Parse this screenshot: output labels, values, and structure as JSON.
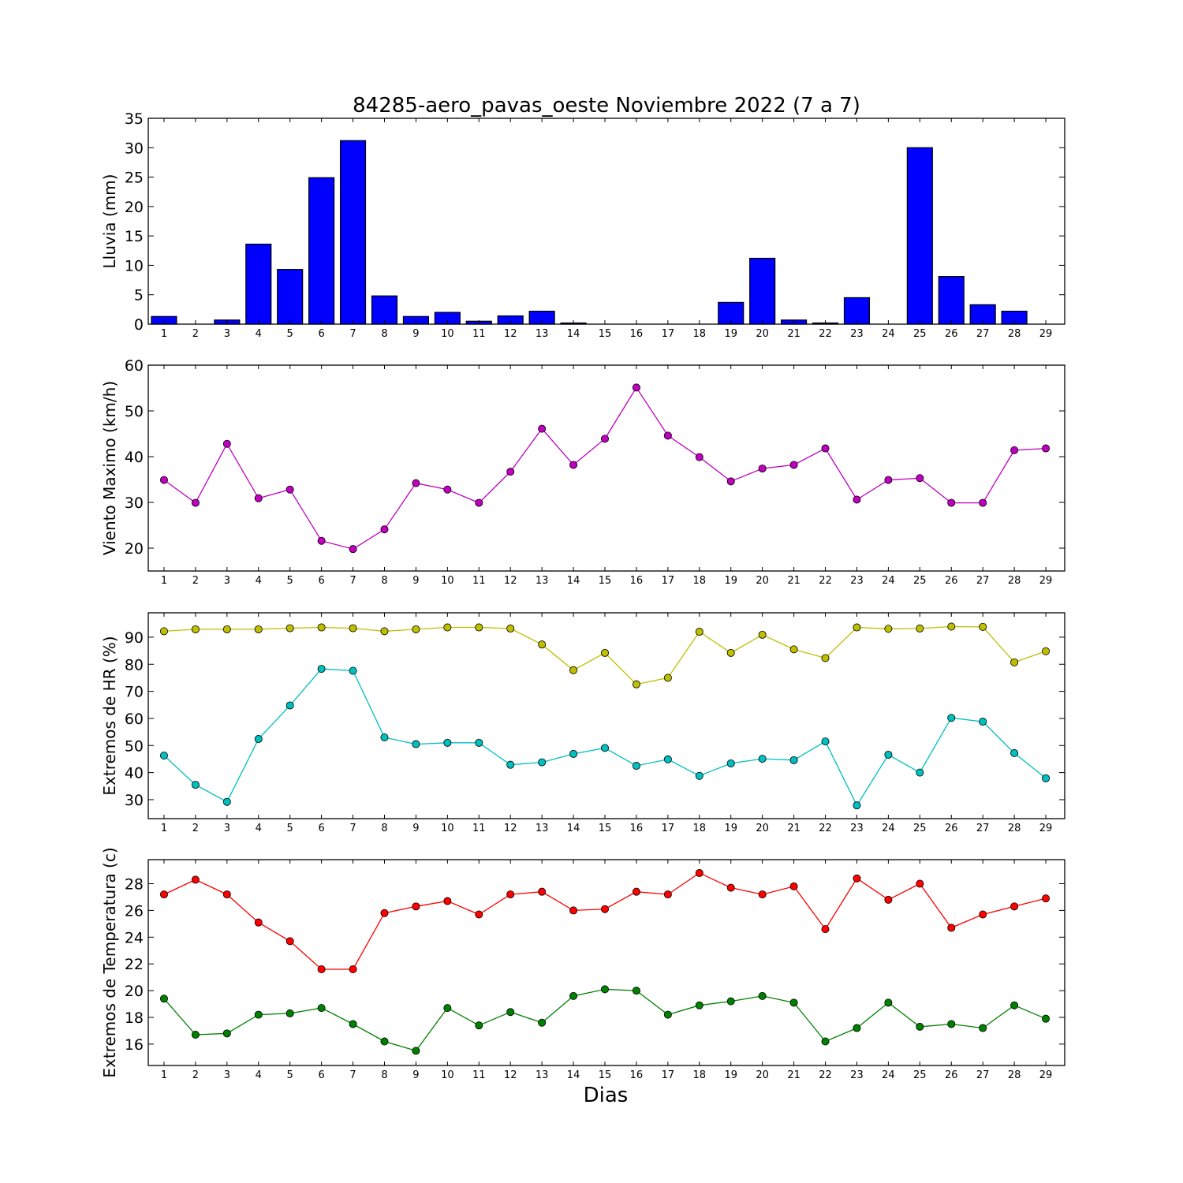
{
  "chart_data": [
    {
      "type": "bar",
      "title": "84285-aero_pavas_oeste Noviembre 2022  (7 a 7)",
      "ylabel": "Lluvia (mm)",
      "xlabel": "",
      "categories": [
        "1",
        "2",
        "3",
        "4",
        "5",
        "6",
        "7",
        "8",
        "9",
        "10",
        "11",
        "12",
        "13",
        "14",
        "15",
        "16",
        "17",
        "18",
        "19",
        "20",
        "21",
        "22",
        "23",
        "24",
        "25",
        "26",
        "27",
        "28",
        "29"
      ],
      "ylim": [
        0,
        35
      ],
      "yticks": [
        "0",
        "5",
        "10",
        "15",
        "20",
        "25",
        "30",
        "35"
      ],
      "grid": false,
      "series": [
        {
          "color": "#0000ff",
          "values": [
            1.3,
            0,
            0.7,
            13.6,
            9.3,
            24.9,
            31.2,
            4.8,
            1.3,
            2.0,
            0.5,
            1.4,
            2.2,
            0.2,
            0,
            0,
            0,
            0,
            3.7,
            11.2,
            0.7,
            0.2,
            4.5,
            0,
            30.0,
            8.1,
            3.3,
            2.2,
            0
          ]
        }
      ]
    },
    {
      "type": "line",
      "ylabel": "Viento Maximo (km/h)",
      "xlabel": "",
      "categories": [
        "1",
        "2",
        "3",
        "4",
        "5",
        "6",
        "7",
        "8",
        "9",
        "10",
        "11",
        "12",
        "13",
        "14",
        "15",
        "16",
        "17",
        "18",
        "19",
        "20",
        "21",
        "22",
        "23",
        "24",
        "25",
        "26",
        "27",
        "28",
        "29"
      ],
      "ylim": [
        15,
        60
      ],
      "yticks": [
        "20",
        "30",
        "40",
        "50",
        "60"
      ],
      "grid": false,
      "series": [
        {
          "color": "#bf00bf",
          "values": [
            34.9,
            29.9,
            42.8,
            30.9,
            32.8,
            21.6,
            19.8,
            24.1,
            34.2,
            32.8,
            29.9,
            36.7,
            46.1,
            38.2,
            43.9,
            55.1,
            44.6,
            39.9,
            34.6,
            37.4,
            38.2,
            41.8,
            30.6,
            34.9,
            35.3,
            29.9,
            29.9,
            41.4,
            41.8
          ]
        }
      ]
    },
    {
      "type": "line",
      "ylabel": "Extremos de HR (%)",
      "xlabel": "",
      "categories": [
        "1",
        "2",
        "3",
        "4",
        "5",
        "6",
        "7",
        "8",
        "9",
        "10",
        "11",
        "12",
        "13",
        "14",
        "15",
        "16",
        "17",
        "18",
        "19",
        "20",
        "21",
        "22",
        "23",
        "24",
        "25",
        "26",
        "27",
        "28",
        "29"
      ],
      "ylim": [
        23,
        99
      ],
      "yticks": [
        "30",
        "40",
        "50",
        "60",
        "70",
        "80",
        "90"
      ],
      "grid": false,
      "series": [
        {
          "color": "#bfbf00",
          "values": [
            92.2,
            92.9,
            92.9,
            92.9,
            93.3,
            93.6,
            93.3,
            92.2,
            92.9,
            93.6,
            93.6,
            93.2,
            87.3,
            77.8,
            84.2,
            72.6,
            75.0,
            92.0,
            84.2,
            90.9,
            85.5,
            82.3,
            93.6,
            93.1,
            93.2,
            93.9,
            93.8,
            80.7,
            84.8
          ]
        },
        {
          "color": "#00bfbf",
          "values": [
            46.3,
            35.5,
            29.2,
            52.4,
            64.8,
            78.3,
            77.6,
            53.0,
            50.5,
            51.0,
            51.0,
            42.9,
            43.8,
            46.9,
            49.1,
            42.5,
            44.9,
            38.8,
            43.4,
            45.1,
            44.6,
            51.5,
            27.9,
            46.6,
            40.0,
            60.2,
            58.8,
            47.2,
            37.9
          ]
        }
      ]
    },
    {
      "type": "line",
      "ylabel": "Extremos de Temperatura (c)",
      "xlabel": "Dias",
      "categories": [
        "1",
        "2",
        "3",
        "4",
        "5",
        "6",
        "7",
        "8",
        "9",
        "10",
        "11",
        "12",
        "13",
        "14",
        "15",
        "16",
        "17",
        "18",
        "19",
        "20",
        "21",
        "22",
        "23",
        "24",
        "25",
        "26",
        "27",
        "28",
        "29"
      ],
      "ylim": [
        14.4,
        29.8
      ],
      "yticks": [
        "16",
        "18",
        "20",
        "22",
        "24",
        "26",
        "28"
      ],
      "grid": false,
      "series": [
        {
          "color": "#ff0000",
          "values": [
            27.2,
            28.3,
            27.2,
            25.1,
            23.7,
            21.6,
            21.6,
            25.8,
            26.3,
            26.7,
            25.7,
            27.2,
            27.4,
            26.0,
            26.1,
            27.4,
            27.2,
            28.8,
            27.7,
            27.2,
            27.8,
            24.6,
            28.4,
            26.8,
            28.0,
            24.7,
            25.7,
            26.3,
            26.9
          ]
        },
        {
          "color": "#008000",
          "values": [
            19.4,
            16.7,
            16.8,
            18.2,
            18.3,
            18.7,
            17.5,
            16.2,
            15.5,
            18.7,
            17.4,
            18.4,
            17.6,
            19.6,
            20.1,
            20.0,
            18.2,
            18.9,
            19.2,
            19.6,
            19.1,
            16.2,
            17.2,
            19.1,
            17.3,
            17.5,
            17.2,
            18.9,
            17.9
          ]
        }
      ]
    }
  ]
}
